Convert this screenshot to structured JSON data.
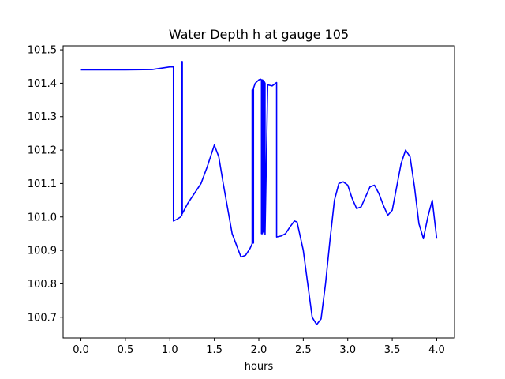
{
  "chart_data": {
    "type": "line",
    "title": "Water Depth h at gauge 105",
    "xlabel": "hours",
    "ylabel": "",
    "xlim": [
      -0.2,
      4.2
    ],
    "ylim": [
      100.638,
      101.512
    ],
    "x_ticks": [
      0.0,
      0.5,
      1.0,
      1.5,
      2.0,
      2.5,
      3.0,
      3.5,
      4.0
    ],
    "x_tick_labels": [
      "0.0",
      "0.5",
      "1.0",
      "1.5",
      "2.0",
      "2.5",
      "3.0",
      "3.5",
      "4.0"
    ],
    "y_ticks": [
      100.7,
      100.8,
      100.9,
      101.0,
      101.1,
      101.2,
      101.3,
      101.4,
      101.5
    ],
    "y_tick_labels": [
      "100.7",
      "100.8",
      "100.9",
      "101.0",
      "101.1",
      "101.2",
      "101.3",
      "101.4",
      "101.5"
    ],
    "grid": false,
    "legend": "none",
    "series": [
      {
        "color": "#0000ff",
        "x": [
          0.0,
          0.5,
          0.8,
          1.0,
          1.04,
          1.04,
          1.08,
          1.12,
          1.135,
          1.135,
          1.14,
          1.14,
          1.2,
          1.3,
          1.35,
          1.42,
          1.5,
          1.55,
          1.6,
          1.7,
          1.8,
          1.85,
          1.9,
          1.925,
          1.925,
          1.93,
          1.93,
          1.94,
          1.94,
          1.96,
          2.0,
          2.02,
          2.03,
          2.03,
          2.04,
          2.04,
          2.05,
          2.05,
          2.06,
          2.06,
          2.07,
          2.07,
          2.1,
          2.15,
          2.2,
          2.2,
          2.25,
          2.3,
          2.35,
          2.4,
          2.43,
          2.5,
          2.55,
          2.6,
          2.65,
          2.7,
          2.75,
          2.8,
          2.85,
          2.9,
          2.95,
          3.0,
          3.05,
          3.1,
          3.15,
          3.2,
          3.25,
          3.3,
          3.35,
          3.4,
          3.45,
          3.5,
          3.55,
          3.6,
          3.65,
          3.7,
          3.75,
          3.8,
          3.85,
          3.9,
          3.95,
          4.0
        ],
        "y": [
          101.44,
          101.44,
          101.441,
          101.449,
          101.449,
          100.988,
          100.993,
          101.0,
          101.005,
          101.465,
          101.465,
          101.01,
          101.04,
          101.08,
          101.1,
          101.15,
          101.215,
          101.18,
          101.1,
          100.95,
          100.88,
          100.885,
          100.905,
          100.92,
          101.38,
          101.38,
          100.922,
          100.922,
          101.385,
          101.4,
          101.41,
          101.412,
          101.41,
          100.95,
          100.95,
          101.41,
          101.408,
          100.955,
          100.955,
          101.405,
          101.4,
          100.948,
          101.395,
          101.392,
          101.402,
          100.94,
          100.943,
          100.95,
          100.97,
          100.988,
          100.985,
          100.9,
          100.8,
          100.7,
          100.678,
          100.695,
          100.8,
          100.93,
          101.05,
          101.1,
          101.105,
          101.095,
          101.055,
          101.025,
          101.03,
          101.06,
          101.09,
          101.095,
          101.07,
          101.035,
          101.005,
          101.02,
          101.09,
          101.16,
          101.2,
          101.18,
          101.09,
          100.98,
          100.935,
          101.0,
          101.05,
          100.935
        ]
      }
    ]
  }
}
